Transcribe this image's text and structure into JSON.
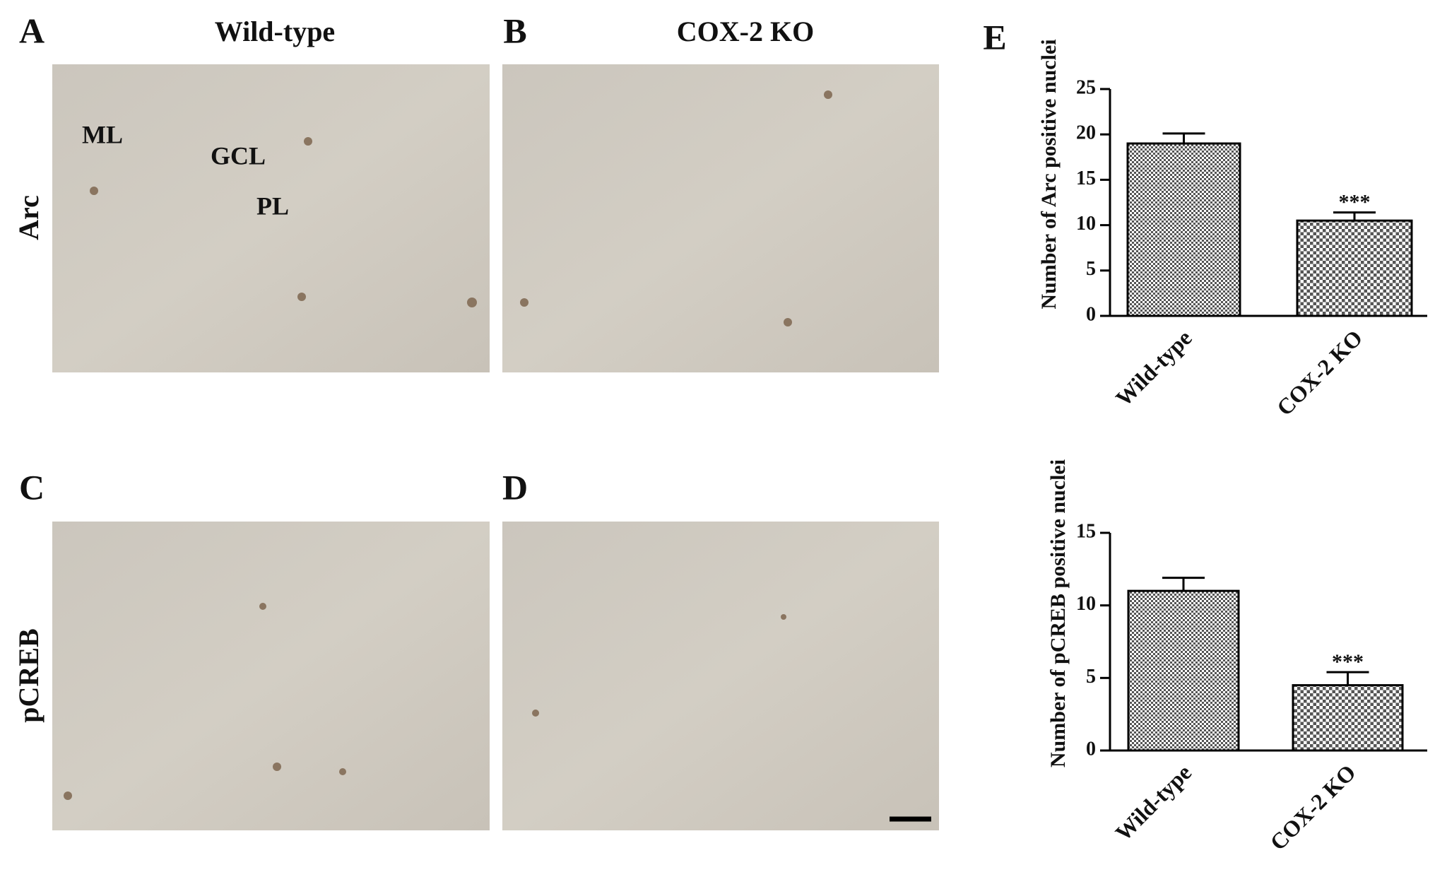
{
  "micrographs": [
    {
      "label": "A",
      "title": "Wild-type",
      "row_label": "Arc",
      "annotations": [
        "ML",
        "GCL",
        "PL"
      ]
    },
    {
      "label": "B",
      "title": "COX-2 KO"
    },
    {
      "label": "C",
      "row_label": "pCREB"
    },
    {
      "label": "D"
    }
  ],
  "panel_label": "E",
  "chart_data": [
    {
      "type": "bar",
      "y_label": "Number of Arc positive nuclei",
      "categories": [
        "Wild-type",
        "COX-2 KO"
      ],
      "values": [
        19,
        10.5
      ],
      "errors": [
        1.1,
        0.9
      ],
      "significance": [
        null,
        "***"
      ],
      "color": "#555555",
      "ylim": [
        0,
        25
      ],
      "yticks": [
        0,
        5,
        10,
        15,
        20,
        25
      ]
    },
    {
      "type": "bar",
      "y_label": "Number of pCREB positive nuclei",
      "categories": [
        "Wild-type",
        "COX-2 KO"
      ],
      "values": [
        11,
        4.5
      ],
      "errors": [
        0.9,
        0.9
      ],
      "significance": [
        null,
        "***"
      ],
      "color": "#555555",
      "ylim": [
        0,
        15
      ],
      "yticks": [
        0,
        5,
        10,
        15
      ]
    }
  ]
}
